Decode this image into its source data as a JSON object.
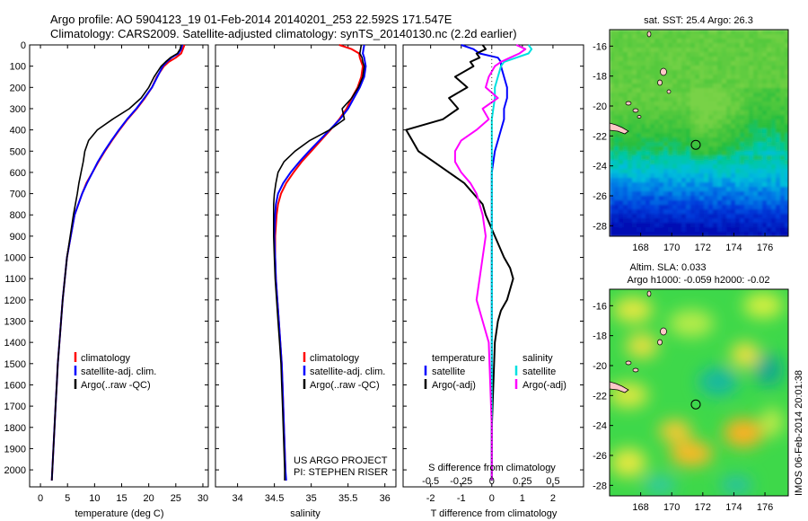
{
  "header": {
    "line1": "Argo profile: AO 5904123_19 01-Feb-2014 20140201_253 22.592S 171.547E",
    "line2": "Climatology: CARS2009. Satellite-adjusted climatology: synTS_20140130.nc (2.2d earlier)"
  },
  "colors": {
    "climatology": "#ff0000",
    "satellite": "#0000ff",
    "argo": "#000000",
    "sal_sat": "#00e0e0",
    "sal_argo": "#ff00ff"
  },
  "credit": {
    "project": "US ARGO PROJECT",
    "pi": "PI: STEPHEN RISER"
  },
  "side_stamp": "IMOS 06-Feb-2014 20:01:38",
  "chart_data": [
    {
      "type": "line",
      "id": "temperature",
      "xlabel": "temperature (deg C)",
      "xlim": [
        -2,
        31
      ],
      "ylim": [
        0,
        2080
      ],
      "yticks": [
        0,
        100,
        200,
        300,
        400,
        500,
        600,
        700,
        800,
        900,
        1000,
        1100,
        1200,
        1300,
        1400,
        1500,
        1600,
        1700,
        1800,
        1900,
        2000
      ],
      "xticks": [
        "0",
        "5",
        "10",
        "15",
        "20",
        "25",
        "30"
      ],
      "xtick_values": [
        0,
        5,
        10,
        15,
        20,
        25,
        30
      ],
      "legend": [
        "climatology",
        "satellite-adj. clim.",
        "Argo(..raw -QC)"
      ],
      "series": [
        {
          "name": "climatology",
          "depth": [
            0,
            20,
            40,
            60,
            80,
            100,
            150,
            200,
            250,
            300,
            350,
            400,
            450,
            500,
            550,
            600,
            650,
            700,
            800,
            900,
            1000,
            1100,
            1200,
            1300,
            1400,
            1500,
            1600,
            1700,
            1800,
            1900,
            2000,
            2050
          ],
          "values": [
            26.6,
            26.3,
            26.0,
            25.0,
            23.7,
            22.8,
            21.5,
            20.6,
            19.3,
            17.8,
            16.1,
            14.6,
            13.2,
            11.9,
            10.7,
            9.6,
            8.5,
            7.7,
            6.3,
            5.6,
            4.9,
            4.5,
            4.1,
            3.8,
            3.5,
            3.2,
            3.0,
            2.8,
            2.6,
            2.4,
            2.2,
            2.1
          ]
        },
        {
          "name": "satellite-adj. clim.",
          "depth": [
            0,
            20,
            40,
            60,
            80,
            100,
            150,
            200,
            250,
            300,
            350,
            400,
            450,
            500,
            550,
            600,
            650,
            700,
            800,
            900,
            1000,
            1100,
            1200,
            1300,
            1400,
            1500,
            1600,
            1700,
            1800,
            1900,
            2000,
            2050
          ],
          "values": [
            26.2,
            26.0,
            25.5,
            24.2,
            23.3,
            22.6,
            21.6,
            20.6,
            19.2,
            17.7,
            16.0,
            14.5,
            13.1,
            11.8,
            10.6,
            9.6,
            8.6,
            7.7,
            6.3,
            5.6,
            4.9,
            4.5,
            4.1,
            3.8,
            3.5,
            3.2,
            3.0,
            2.8,
            2.6,
            2.4,
            2.2,
            2.1
          ]
        },
        {
          "name": "Argo(..raw -QC)",
          "depth": [
            0,
            20,
            40,
            60,
            80,
            100,
            150,
            200,
            250,
            300,
            350,
            400,
            450,
            500,
            550,
            600,
            650,
            700,
            800,
            900,
            1000,
            1100,
            1200,
            1300,
            1400,
            1500,
            1600,
            1700,
            1800,
            1900,
            2000,
            2050
          ],
          "values": [
            26.0,
            25.8,
            25.3,
            24.0,
            23.1,
            22.3,
            21.0,
            20.0,
            18.6,
            16.4,
            13.3,
            10.5,
            8.9,
            8.2,
            7.9,
            7.5,
            7.1,
            6.8,
            6.1,
            5.5,
            4.9,
            4.5,
            4.1,
            3.8,
            3.5,
            3.2,
            3.0,
            2.8,
            2.6,
            2.4,
            2.2,
            2.1
          ]
        }
      ]
    },
    {
      "type": "line",
      "id": "salinity",
      "xlabel": "salinity",
      "xlim": [
        33.7,
        36.15
      ],
      "ylim": [
        0,
        2080
      ],
      "xticks": [
        "34",
        "34.5",
        "35",
        "35.5",
        "36"
      ],
      "xtick_values": [
        34,
        34.5,
        35,
        35.5,
        36
      ],
      "legend": [
        "climatology",
        "satellite-adj. clim.",
        "Argo(..raw -QC)"
      ],
      "series": [
        {
          "name": "climatology",
          "depth": [
            0,
            20,
            40,
            60,
            80,
            100,
            150,
            200,
            250,
            300,
            350,
            400,
            450,
            500,
            550,
            600,
            650,
            700,
            750,
            800,
            900,
            1000,
            1100,
            1200,
            1300,
            1400,
            1500,
            1600,
            1700,
            1800,
            1900,
            2000,
            2050
          ],
          "values": [
            35.38,
            35.55,
            35.65,
            35.66,
            35.68,
            35.7,
            35.68,
            35.63,
            35.55,
            35.48,
            35.38,
            35.26,
            35.13,
            35.0,
            34.87,
            34.76,
            34.66,
            34.59,
            34.55,
            34.53,
            34.51,
            34.51,
            34.52,
            34.54,
            34.56,
            34.58,
            34.6,
            34.61,
            34.62,
            34.63,
            34.64,
            34.65,
            34.65
          ]
        },
        {
          "name": "satellite-adj. clim.",
          "depth": [
            0,
            20,
            40,
            60,
            80,
            100,
            150,
            200,
            250,
            300,
            350,
            400,
            450,
            500,
            550,
            600,
            650,
            700,
            750,
            800,
            900,
            1000,
            1100,
            1200,
            1300,
            1400,
            1500,
            1600,
            1700,
            1800,
            1900,
            2000,
            2050
          ],
          "values": [
            35.72,
            35.71,
            35.7,
            35.72,
            35.73,
            35.74,
            35.72,
            35.66,
            35.58,
            35.5,
            35.39,
            35.25,
            35.11,
            34.97,
            34.84,
            34.72,
            34.62,
            34.55,
            34.52,
            34.51,
            34.5,
            34.51,
            34.52,
            34.54,
            34.56,
            34.58,
            34.6,
            34.61,
            34.62,
            34.63,
            34.64,
            34.65,
            34.66
          ]
        },
        {
          "name": "Argo(..raw -QC)",
          "depth": [
            0,
            20,
            40,
            60,
            80,
            100,
            150,
            200,
            250,
            300,
            350,
            400,
            450,
            500,
            550,
            600,
            650,
            700,
            750,
            800,
            900,
            1000,
            1100,
            1200,
            1300,
            1400,
            1500,
            1600,
            1700,
            1800,
            1900,
            2000,
            2050
          ],
          "values": [
            35.68,
            35.67,
            35.66,
            35.69,
            35.7,
            35.72,
            35.7,
            35.64,
            35.55,
            35.42,
            35.45,
            35.25,
            34.98,
            34.78,
            34.63,
            34.55,
            34.52,
            34.5,
            34.49,
            34.49,
            34.49,
            34.5,
            34.51,
            34.53,
            34.55,
            34.57,
            34.59,
            34.6,
            34.61,
            34.62,
            34.63,
            34.64,
            34.64
          ]
        }
      ]
    },
    {
      "type": "line",
      "id": "difference",
      "xlabel_top": "S difference from climatology",
      "xlabel": "T difference from climatology",
      "xlim": [
        -2.9,
        3.0
      ],
      "ylim": [
        0,
        2080
      ],
      "xticks": [
        "-2",
        "-1",
        "0",
        "1",
        "2"
      ],
      "xtick_values": [
        -2,
        -1,
        0,
        1,
        2
      ],
      "sticks": [
        "-0.5",
        "-0.25",
        "0",
        "0.25",
        "0.5"
      ],
      "stick_positions_T": [
        -2,
        -1,
        0,
        1,
        2
      ],
      "legend_headers": [
        "temperature",
        "salinity"
      ],
      "legend": [
        "satellite",
        "Argo(-adj)",
        "satellite",
        "Argo(-adj)"
      ],
      "series": [
        {
          "name": "temperature satellite",
          "depth": [
            0,
            20,
            40,
            60,
            80,
            100,
            150,
            200,
            250,
            300,
            350,
            400,
            500,
            600,
            700,
            800,
            1000,
            1200,
            1400,
            1600,
            1800,
            2000,
            2050
          ],
          "values": [
            -1.0,
            -0.6,
            -0.4,
            0.2,
            0.3,
            0.3,
            0.4,
            0.5,
            0.5,
            0.4,
            0.4,
            0.3,
            0.1,
            0.0,
            0.0,
            0.0,
            0.0,
            0.0,
            0.0,
            0.0,
            0.0,
            0.0,
            0.0
          ]
        },
        {
          "name": "temperature Argo(-adj)",
          "depth": [
            0,
            20,
            40,
            60,
            80,
            100,
            150,
            200,
            250,
            300,
            350,
            400,
            450,
            500,
            550,
            600,
            650,
            700,
            750,
            800,
            900,
            1000,
            1050,
            1100,
            1150,
            1200,
            1250,
            1300,
            1400,
            1600,
            1800,
            2000,
            2050
          ],
          "values": [
            -0.3,
            -0.2,
            -0.5,
            -0.4,
            -0.7,
            -0.6,
            -1.2,
            -0.8,
            -1.4,
            -1.1,
            -1.6,
            -2.8,
            -2.6,
            -2.4,
            -1.9,
            -1.4,
            -0.9,
            -0.6,
            -0.3,
            -0.2,
            0.1,
            0.4,
            0.6,
            0.7,
            0.6,
            0.5,
            0.3,
            0.2,
            0.1,
            0.05,
            0.0,
            0.0,
            0.0
          ]
        },
        {
          "name": "salinity satellite",
          "depth": [
            0,
            20,
            40,
            60,
            80,
            100,
            150,
            200,
            250,
            300,
            350,
            400,
            500,
            600,
            700,
            800,
            1000,
            1200,
            1400,
            1600,
            1800,
            2000,
            2050
          ],
          "values": [
            1.2,
            1.3,
            1.2,
            0.8,
            0.4,
            0.3,
            0.2,
            0.1,
            0.1,
            0.05,
            0.0,
            0.0,
            0.0,
            0.0,
            0.0,
            0.0,
            0.0,
            0.0,
            0.0,
            0.0,
            0.0,
            0.0,
            0.0
          ]
        },
        {
          "name": "salinity Argo(-adj)",
          "depth": [
            0,
            20,
            40,
            60,
            80,
            100,
            150,
            200,
            250,
            300,
            350,
            400,
            450,
            500,
            550,
            600,
            650,
            700,
            800,
            900,
            1000,
            1100,
            1200,
            1250,
            1300,
            1400,
            1600,
            1800,
            2000,
            2050
          ],
          "values": [
            0.8,
            1.1,
            0.9,
            0.6,
            0.3,
            0.1,
            -0.1,
            -0.2,
            0.2,
            -0.3,
            -0.1,
            -0.5,
            -1.0,
            -1.2,
            -1.2,
            -1.0,
            -0.7,
            -0.5,
            -0.3,
            -0.2,
            -0.3,
            -0.4,
            -0.5,
            -0.4,
            -0.3,
            -0.1,
            -0.05,
            0.0,
            0.0,
            0.0
          ]
        }
      ]
    },
    {
      "type": "heatmap",
      "id": "sst_map",
      "title": "sat. SST: 25.4 Argo: 26.3",
      "xticks": [
        "168",
        "170",
        "172",
        "174",
        "176"
      ],
      "xtick_values": [
        168,
        170,
        172,
        174,
        176
      ],
      "yticks": [
        "-16",
        "-18",
        "-20",
        "-22",
        "-24",
        "-26",
        "-28"
      ],
      "ytick_values": [
        -16,
        -18,
        -20,
        -22,
        -24,
        -26,
        -28
      ],
      "xlim": [
        166,
        177.5
      ],
      "ylim": [
        -28.7,
        -14.9
      ],
      "marker": {
        "lon": 171.547,
        "lat": -22.592
      }
    },
    {
      "type": "heatmap",
      "id": "sla_map",
      "title_line1": "Altim. SLA: 0.033",
      "title_line2": "Argo h1000: -0.059 h2000: -0.02",
      "xticks": [
        "168",
        "170",
        "172",
        "174",
        "176"
      ],
      "xtick_values": [
        168,
        170,
        172,
        174,
        176
      ],
      "yticks": [
        "-16",
        "-18",
        "-20",
        "-22",
        "-24",
        "-26",
        "-28"
      ],
      "ytick_values": [
        -16,
        -18,
        -20,
        -22,
        -24,
        -26,
        -28
      ],
      "xlim": [
        166,
        177.5
      ],
      "ylim": [
        -28.7,
        -14.9
      ],
      "marker": {
        "lon": 171.547,
        "lat": -22.592
      }
    }
  ]
}
